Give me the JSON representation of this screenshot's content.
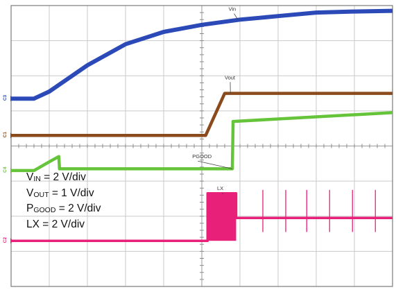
{
  "chart_data": {
    "type": "line",
    "grid": true,
    "x_divisions": 10,
    "y_divisions": 8,
    "channels": [
      {
        "marker": "C3",
        "name": "Vin",
        "color": "#2b4ab8"
      },
      {
        "marker": "C1",
        "name": "Vout",
        "color": "#8a4a1c"
      },
      {
        "marker": "C4",
        "name": "PGOOD",
        "color": "#66c43a"
      },
      {
        "marker": "C2",
        "name": "LX",
        "color": "#e8207a"
      }
    ],
    "series": [
      {
        "name": "Vin",
        "x": [
          0,
          0.6,
          1.0,
          2.0,
          3.0,
          4.0,
          5.0,
          6.0,
          7.0,
          8.0,
          9.0,
          10.0
        ],
        "y": [
          5.35,
          5.35,
          5.55,
          6.3,
          6.9,
          7.25,
          7.45,
          7.6,
          7.7,
          7.8,
          7.83,
          7.85
        ]
      },
      {
        "name": "Vout",
        "x": [
          0,
          5.1,
          5.6,
          10.0
        ],
        "y": [
          4.3,
          4.3,
          5.5,
          5.5
        ]
      },
      {
        "name": "PGOOD",
        "x": [
          0,
          0.6,
          1.0,
          1.25,
          1.27,
          5.8,
          5.82,
          10.0
        ],
        "y": [
          3.3,
          3.3,
          3.55,
          3.7,
          3.35,
          3.35,
          4.7,
          4.95
        ]
      },
      {
        "name": "LX",
        "x": [
          0,
          5.15,
          5.15,
          5.9,
          5.9,
          10.0
        ],
        "y": [
          1.3,
          1.3,
          2.65,
          2.65,
          1.95,
          1.95
        ]
      }
    ],
    "annotations": [
      {
        "text": "Vin",
        "x": 5.7,
        "y": 7.85
      },
      {
        "text": "Vout",
        "x": 5.6,
        "y": 5.9
      },
      {
        "text": "PGOOD",
        "x": 4.75,
        "y": 3.65
      },
      {
        "text": "LX",
        "x": 5.4,
        "y": 2.75
      }
    ],
    "legend": {
      "placement": "left-middle",
      "lines": [
        {
          "main": "V",
          "sub": "IN",
          "rest": " = 2 V/div"
        },
        {
          "main": "V",
          "sub": "OUT",
          "rest": " = 1 V/div"
        },
        {
          "main": "P",
          "sub": "GOOD",
          "rest": " = 2 V/div"
        },
        {
          "main": "LX",
          "sub": "",
          "rest": " = 2 V/div"
        }
      ]
    }
  }
}
